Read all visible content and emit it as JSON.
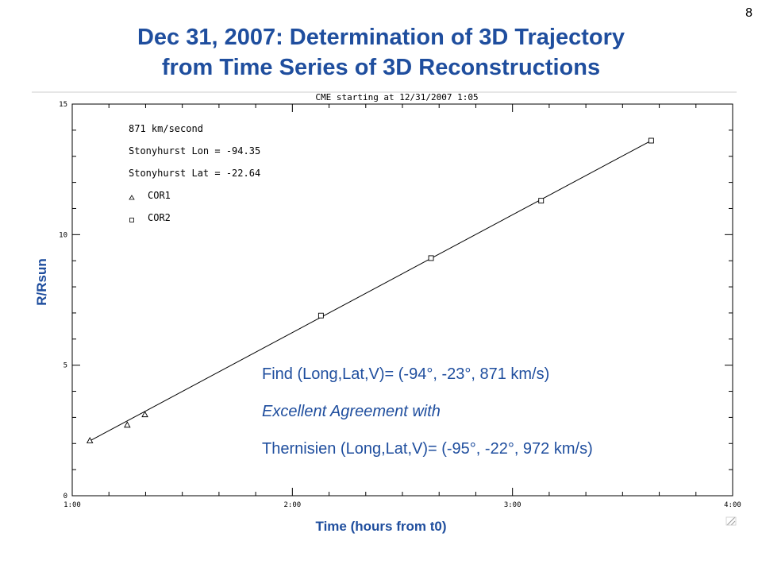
{
  "slide_number": "8",
  "title_line1": "Dec 31, 2007:  Determination of 3D Trajectory",
  "title_line2": "from Time Series of 3D Reconstructions",
  "annotations": {
    "line1": "Find (Long,Lat,V)= (-94°, -23°, 871 km/s)",
    "line2": "Excellent Agreement  with",
    "line3": "Thernisien (Long,Lat,V)= (-95°, -22°, 972 km/s)"
  },
  "chart_data": {
    "type": "scatter",
    "title": "CME starting at 12/31/2007 1:05",
    "xlabel": "Time (hours from t0)",
    "ylabel": "R/Rsun",
    "x_tick_labels": [
      "1:00",
      "2:00",
      "3:00",
      "4:00"
    ],
    "x_ticks": [
      1,
      2,
      3,
      4
    ],
    "y_tick_labels": [
      "0",
      "5",
      "10",
      "15"
    ],
    "y_ticks": [
      0,
      5,
      10,
      15
    ],
    "xlim": [
      1,
      4
    ],
    "ylim": [
      0,
      15
    ],
    "grid": false,
    "legend_placement": "top-left",
    "legend_text": [
      "871 km/second",
      "Stonyhurst Lon = -94.35",
      "Stonyhurst Lat = -22.64"
    ],
    "series": [
      {
        "name": "COR1",
        "marker": "triangle",
        "x": [
          1.08,
          1.25,
          1.33
        ],
        "y": [
          2.1,
          2.7,
          3.1
        ]
      },
      {
        "name": "COR2",
        "marker": "square",
        "x": [
          2.13,
          2.63,
          3.13,
          3.63
        ],
        "y": [
          6.9,
          9.1,
          11.3,
          13.6
        ]
      }
    ],
    "fit_line": {
      "x": [
        1.08,
        3.63
      ],
      "y": [
        2.1,
        13.6
      ]
    }
  }
}
